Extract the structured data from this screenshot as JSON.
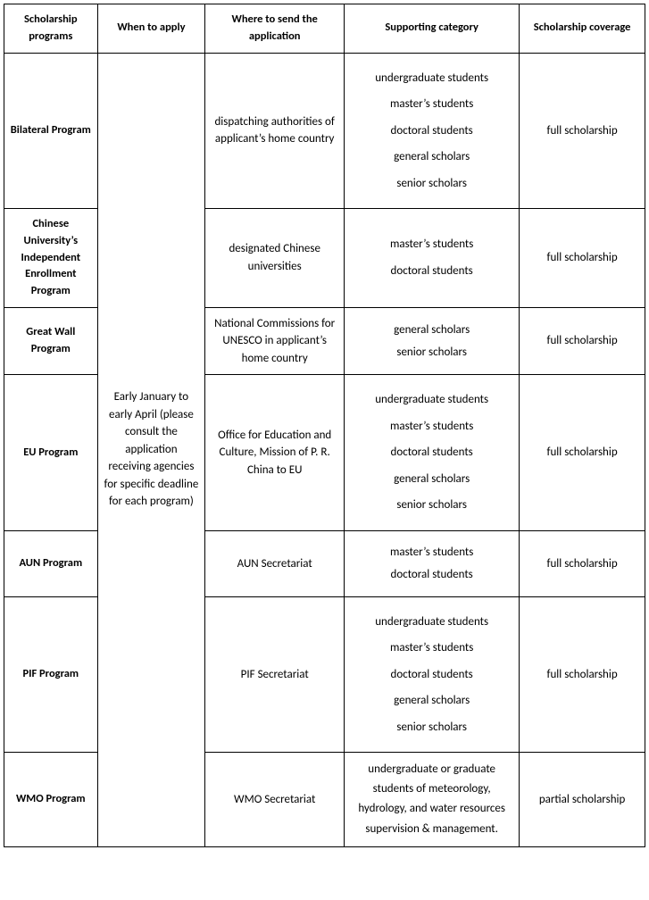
{
  "headers": {
    "programs": "Scholarship programs",
    "when": "When to apply",
    "where": "Where to send the application",
    "category": "Supporting category",
    "coverage": "Scholarship coverage"
  },
  "when_text": "Early January to early April (please consult the application receiving agencies for specific deadline for each program)",
  "rows": {
    "bilateral": {
      "name": "Bilateral Program",
      "where": "dispatching authorities of applicant’s home country",
      "coverage": "full scholarship",
      "cats": [
        "undergraduate students",
        "master’s students",
        "doctoral students",
        "general scholars",
        "senior scholars"
      ]
    },
    "cuiep": {
      "name": "Chinese University’s Independent Enrollment Program",
      "where": "designated Chinese universities",
      "coverage": "full scholarship",
      "cats": [
        "master’s students",
        "doctoral students"
      ]
    },
    "greatwall": {
      "name": "Great Wall Program",
      "where": "National Commissions for UNESCO in applicant’s home country",
      "coverage": "full scholarship",
      "cats": [
        "general scholars",
        "senior scholars"
      ]
    },
    "eu": {
      "name": "EU Program",
      "where": "Office for Education and Culture, Mission of P. R. China to EU",
      "coverage": "full scholarship",
      "cats": [
        "undergraduate students",
        "master’s students",
        "doctoral students",
        "general scholars",
        "senior scholars"
      ]
    },
    "aun": {
      "name": "AUN Program",
      "where": "AUN Secretariat",
      "coverage": "full scholarship",
      "cats": [
        "master’s students",
        "doctoral students"
      ]
    },
    "pif": {
      "name": "PIF Program",
      "where": "PIF Secretariat",
      "coverage": "full scholarship",
      "cats": [
        "undergraduate students",
        "master’s students",
        "doctoral students",
        "general scholars",
        "senior scholars"
      ]
    },
    "wmo": {
      "name": "WMO Program",
      "where": "WMO Secretariat",
      "coverage": "partial scholarship",
      "cat_block": "undergraduate or graduate students of meteorology, hydrology, and water resources supervision & management."
    }
  }
}
